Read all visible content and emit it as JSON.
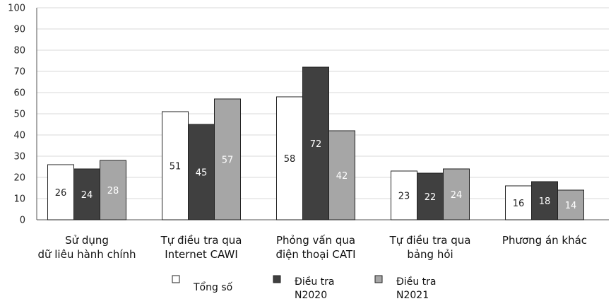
{
  "chart_data": {
    "type": "bar",
    "title": "",
    "xlabel": "",
    "ylabel": "",
    "ylim": [
      0,
      100
    ],
    "yticks": [
      "0",
      "10",
      "20",
      "30",
      "40",
      "50",
      "60",
      "70",
      "80",
      "90",
      "100"
    ],
    "categories": [
      [
        "Sử dụng",
        "dữ liêu hành chính"
      ],
      [
        "Tự điều tra qua",
        "Internet CAWI"
      ],
      [
        "Phỏng vấn qua",
        "điện thoại CATI"
      ],
      [
        "Tự điều tra qua",
        "bảng hỏi"
      ],
      [
        "Phương án khác"
      ]
    ],
    "series": [
      {
        "name": "Tổng số",
        "values": [
          26,
          51,
          58,
          23,
          16
        ],
        "color": "#ffffff",
        "label_color": "#222222"
      },
      {
        "name": "Điều tra N2020",
        "values": [
          24,
          45,
          72,
          22,
          18
        ],
        "color": "#404040",
        "label_color": "#ffffff"
      },
      {
        "name": "Điều tra N2021",
        "values": [
          28,
          57,
          42,
          24,
          14
        ],
        "color": "#a6a6a6",
        "label_color": "#ffffff"
      }
    ],
    "legend": {
      "position": "bottom",
      "items": [
        {
          "lines": [
            "Tổng số"
          ],
          "color": "#ffffff"
        },
        {
          "lines": [
            "Điều tra",
            "N2020"
          ],
          "color": "#404040"
        },
        {
          "lines": [
            "Điều tra",
            "N2021"
          ],
          "color": "#a6a6a6"
        }
      ]
    },
    "grid": true
  }
}
